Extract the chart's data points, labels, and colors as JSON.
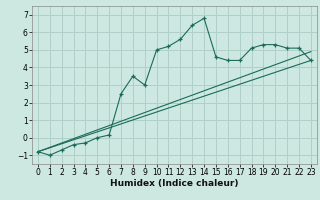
{
  "title": "",
  "xlabel": "Humidex (Indice chaleur)",
  "ylabel": "",
  "bg_color": "#cde8e0",
  "grid_color": "#b0cfc8",
  "line_color": "#1a6b5a",
  "xlim": [
    -0.5,
    23.5
  ],
  "ylim": [
    -1.5,
    7.5
  ],
  "xticks": [
    0,
    1,
    2,
    3,
    4,
    5,
    6,
    7,
    8,
    9,
    10,
    11,
    12,
    13,
    14,
    15,
    16,
    17,
    18,
    19,
    20,
    21,
    22,
    23
  ],
  "yticks": [
    -1,
    0,
    1,
    2,
    3,
    4,
    5,
    6,
    7
  ],
  "series1_x": [
    0,
    1,
    2,
    3,
    4,
    5,
    6,
    7,
    8,
    9,
    10,
    11,
    12,
    13,
    14,
    15,
    16,
    17,
    18,
    19,
    20,
    21,
    22,
    23
  ],
  "series1_y": [
    -0.8,
    -1.0,
    -0.7,
    -0.4,
    -0.3,
    0.0,
    0.15,
    2.5,
    3.5,
    3.0,
    5.0,
    5.2,
    5.6,
    6.4,
    6.8,
    4.6,
    4.4,
    4.4,
    5.1,
    5.3,
    5.3,
    5.1,
    5.1,
    4.4
  ],
  "series2_x": [
    0,
    23
  ],
  "series2_y": [
    -0.8,
    4.4
  ],
  "series3_x": [
    0,
    23
  ],
  "series3_y": [
    -0.8,
    4.9
  ]
}
